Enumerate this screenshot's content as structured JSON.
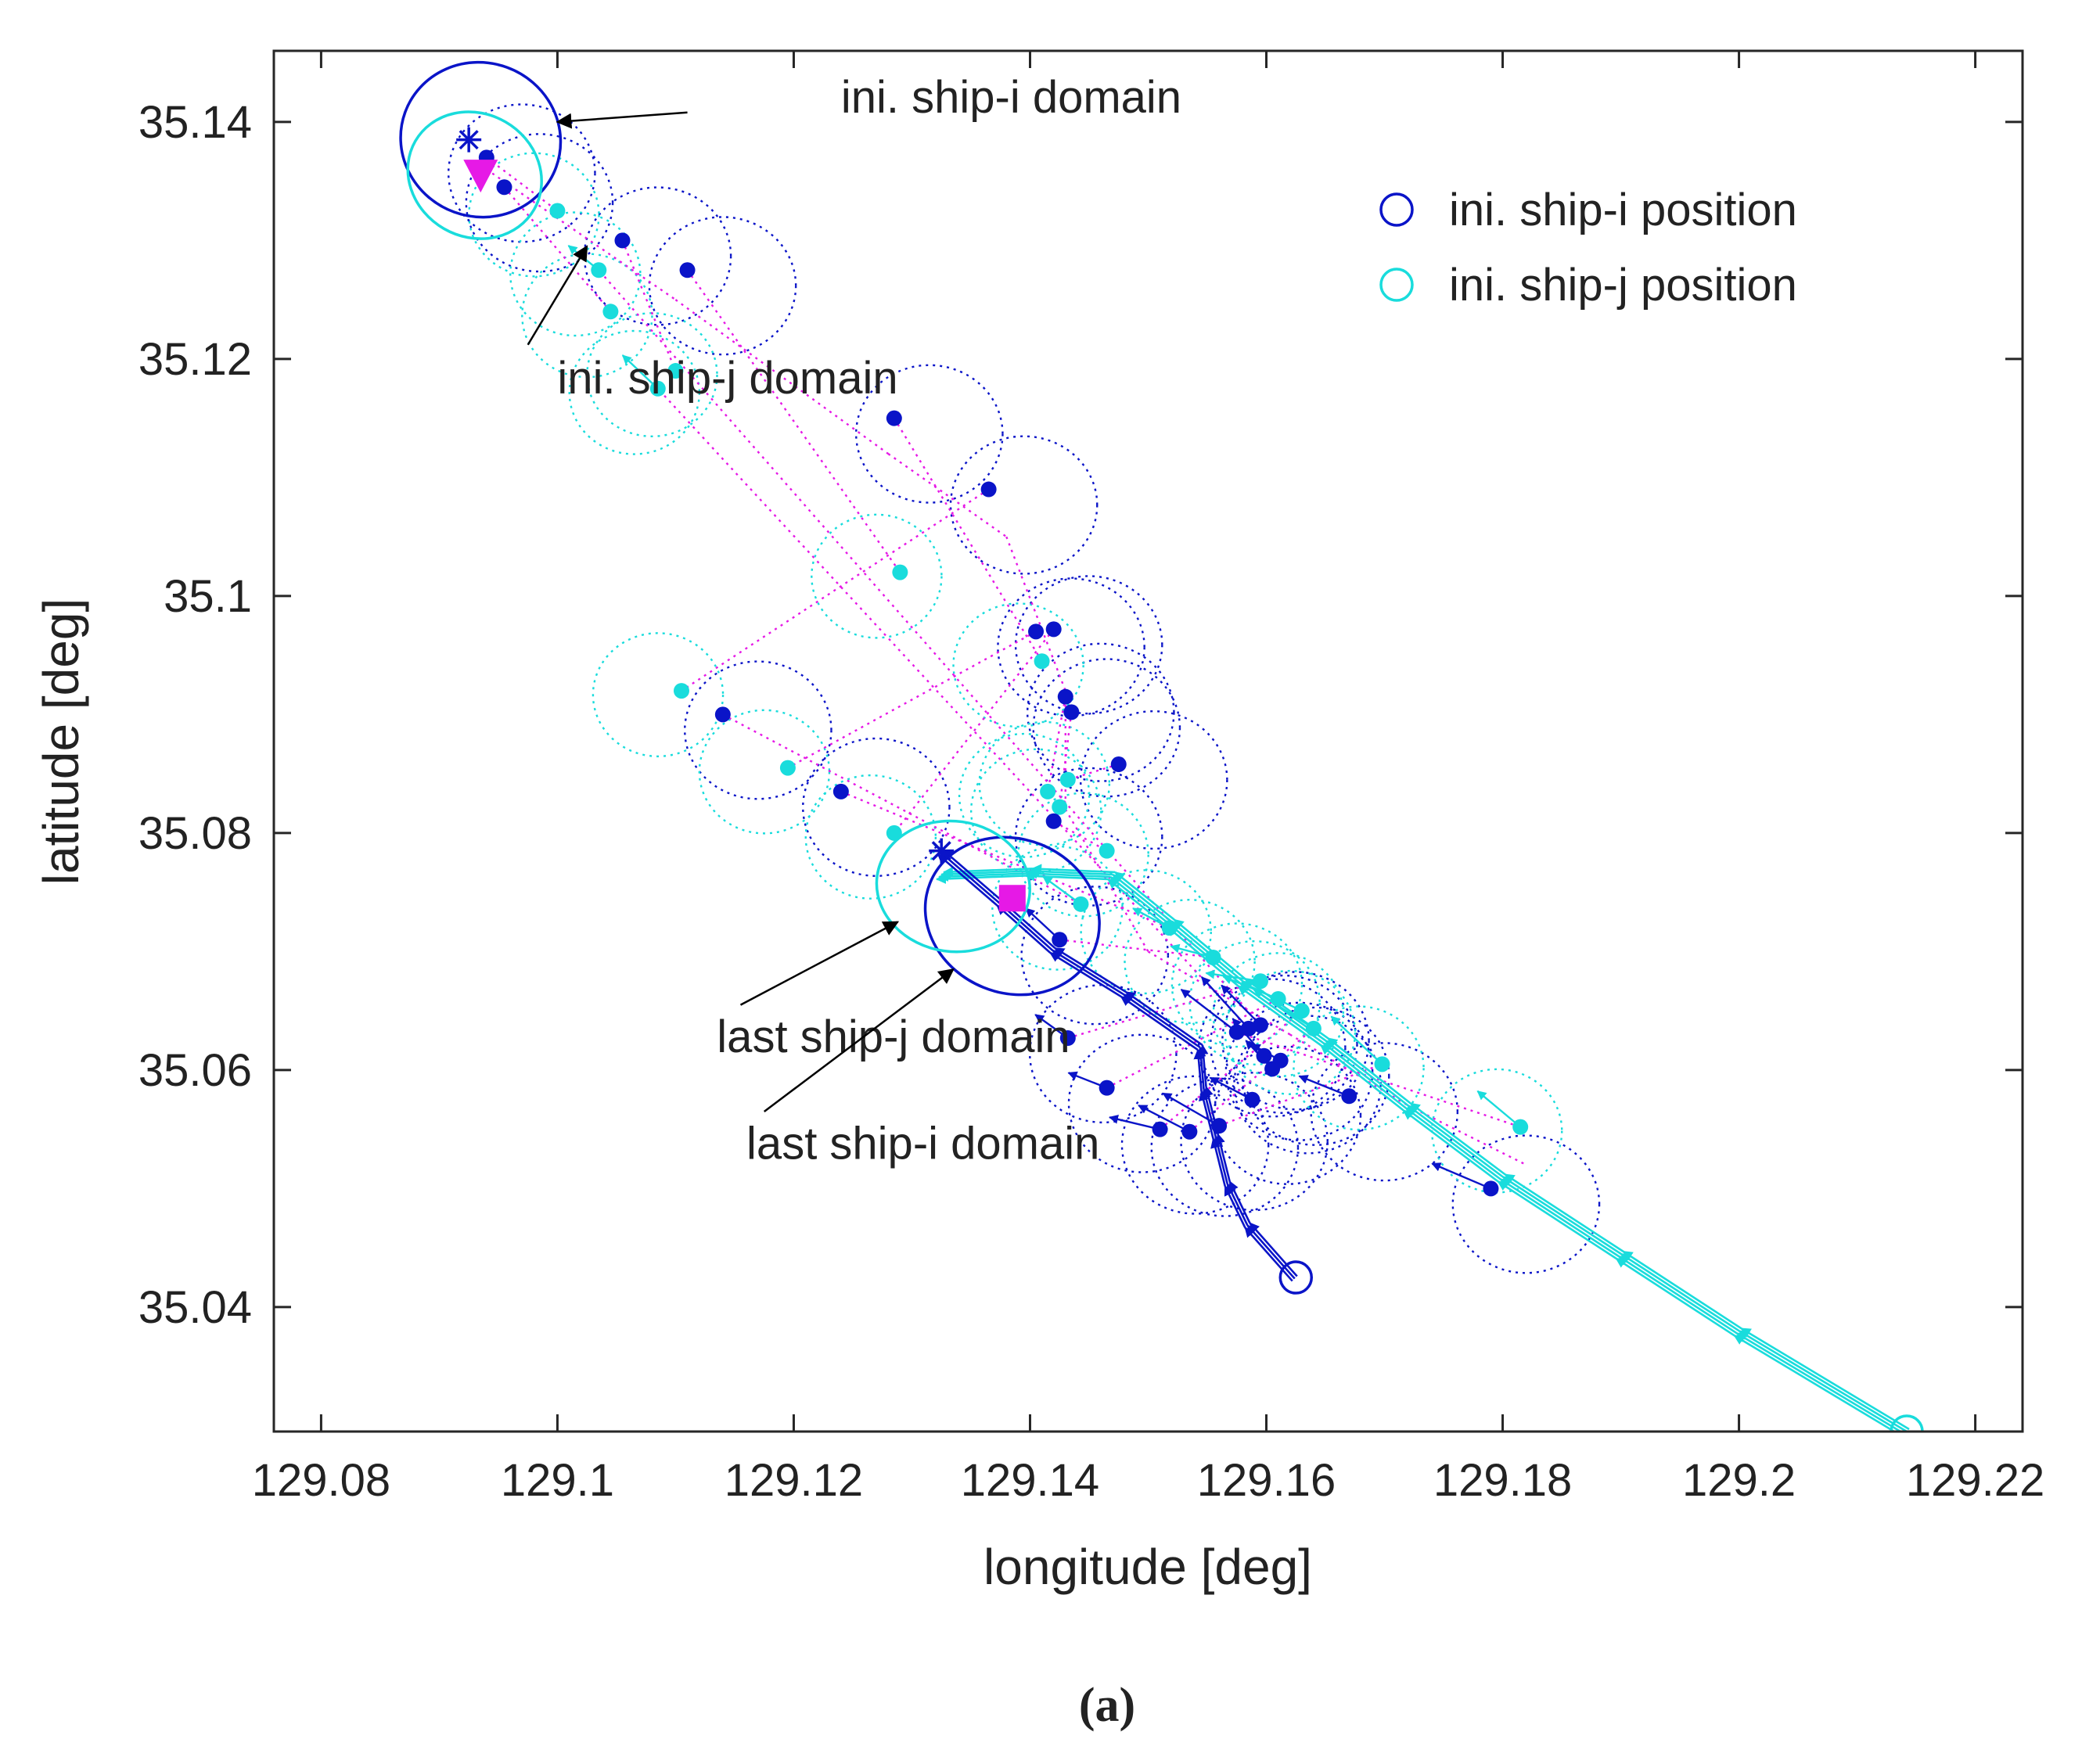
{
  "chart_data": {
    "type": "scatter",
    "caption": "(a)",
    "xlabel": "longitude [deg]",
    "ylabel": "latitude [deg]",
    "xlim": [
      129.076,
      129.224
    ],
    "ylim": [
      35.0295,
      35.146
    ],
    "xticks": [
      129.08,
      129.1,
      129.12,
      129.14,
      129.16,
      129.18,
      129.2,
      129.22
    ],
    "xtick_labels": [
      "129.08",
      "129.1",
      "129.12",
      "129.14",
      "129.16",
      "129.18",
      "129.2",
      "129.22"
    ],
    "yticks": [
      35.04,
      35.06,
      35.08,
      35.1,
      35.12,
      35.14
    ],
    "ytick_labels": [
      "35.04",
      "35.06",
      "35.08",
      "35.1",
      "35.12",
      "35.14"
    ],
    "legend": [
      {
        "label": "ini. ship-i position",
        "color": "#0a14c8"
      },
      {
        "label": "ini. ship-j position",
        "color": "#19dcdc"
      }
    ],
    "colors": {
      "ship_i": "#0a14c8",
      "ship_j": "#19dcdc",
      "pair": "#e619e6",
      "annotation": "#000000"
    },
    "annotations": [
      {
        "text": "ini. ship-i domain",
        "text_at": [
          129.124,
          35.1408
        ],
        "arrow_from": [
          129.111,
          35.1408
        ],
        "arrow_to": [
          129.1,
          35.14
        ]
      },
      {
        "text": "ini. ship-j domain",
        "text_at": [
          129.1,
          35.1171
        ],
        "arrow_from": [
          129.0975,
          35.1212
        ],
        "arrow_to": [
          129.1025,
          35.1295
        ]
      },
      {
        "text": "last ship-j domain",
        "text_at": [
          129.1135,
          35.0615
        ],
        "arrow_from": [
          129.1155,
          35.0655
        ],
        "arrow_to": [
          129.1288,
          35.0725
        ]
      },
      {
        "text": "last ship-i domain",
        "text_at": [
          129.116,
          35.0525
        ],
        "arrow_from": [
          129.1175,
          35.0565
        ],
        "arrow_to": [
          129.1335,
          35.0685
        ]
      }
    ],
    "ship_i_points": [
      [
        129.094,
        35.137
      ],
      [
        129.0955,
        35.1345
      ],
      [
        129.1055,
        35.13
      ],
      [
        129.111,
        35.1275
      ],
      [
        129.1285,
        35.115
      ],
      [
        129.1365,
        35.109
      ],
      [
        129.1405,
        35.097
      ],
      [
        129.142,
        35.0972
      ],
      [
        129.143,
        35.0915
      ],
      [
        129.1435,
        35.0902
      ],
      [
        129.1475,
        35.0858
      ],
      [
        129.142,
        35.081
      ],
      [
        129.114,
        35.09
      ],
      [
        129.124,
        35.0835
      ],
      [
        129.1425,
        35.071
      ],
      [
        129.1432,
        35.0627
      ],
      [
        129.1465,
        35.0585
      ],
      [
        129.151,
        35.055
      ],
      [
        129.1535,
        35.0548
      ],
      [
        129.156,
        35.0553
      ],
      [
        129.1575,
        35.0632
      ],
      [
        129.1585,
        35.0635
      ],
      [
        129.1595,
        35.0638
      ],
      [
        129.1598,
        35.0612
      ],
      [
        129.1605,
        35.0601
      ],
      [
        129.1612,
        35.0608
      ],
      [
        129.1588,
        35.0575
      ],
      [
        129.167,
        35.0578
      ],
      [
        129.179,
        35.05
      ]
    ],
    "ship_j_points": [
      [
        129.1,
        35.1325
      ],
      [
        129.1045,
        35.124
      ],
      [
        129.11,
        35.119
      ],
      [
        129.129,
        35.102
      ],
      [
        129.141,
        35.0945
      ],
      [
        129.1105,
        35.092
      ],
      [
        129.1195,
        35.0855
      ],
      [
        129.1285,
        35.08
      ],
      [
        129.1415,
        35.0835
      ],
      [
        129.1425,
        35.0822
      ],
      [
        129.1432,
        35.0845
      ],
      [
        129.1465,
        35.0785
      ],
      [
        129.1443,
        35.074
      ],
      [
        129.1518,
        35.072
      ],
      [
        129.1555,
        35.0695
      ],
      [
        129.1595,
        35.0675
      ],
      [
        129.161,
        35.066
      ],
      [
        129.163,
        35.065
      ],
      [
        129.164,
        35.0635
      ],
      [
        129.1698,
        35.0605
      ],
      [
        129.1815,
        35.0552
      ],
      [
        129.1085,
        35.1175
      ],
      [
        129.1035,
        35.1275
      ]
    ],
    "ship_i_path": [
      [
        129.1625,
        35.0425
      ],
      [
        129.1585,
        35.047
      ],
      [
        129.1568,
        35.0505
      ],
      [
        129.1558,
        35.0545
      ],
      [
        129.1548,
        35.0585
      ],
      [
        129.1545,
        35.062
      ],
      [
        129.148,
        35.0665
      ],
      [
        129.142,
        35.0702
      ],
      [
        129.1375,
        35.0742
      ],
      [
        129.1325,
        35.0785
      ]
    ],
    "ship_j_path": [
      [
        129.2142,
        35.0295
      ],
      [
        129.2,
        35.038
      ],
      [
        129.19,
        35.0445
      ],
      [
        129.18,
        35.051
      ],
      [
        129.172,
        35.057
      ],
      [
        129.165,
        35.0625
      ],
      [
        129.158,
        35.0675
      ],
      [
        129.152,
        35.0725
      ],
      [
        129.147,
        35.0765
      ],
      [
        129.14,
        35.0768
      ],
      [
        129.1325,
        35.0765
      ]
    ],
    "ship_i_start": [
      129.1625,
      35.0425
    ],
    "ship_j_start": [
      129.2142,
      35.0295
    ],
    "ship_i_initial_marker": [
      129.0925,
      35.1385
    ],
    "ship_i_last_marker": [
      129.1325,
      35.0785
    ],
    "pair_initial_marker": [
      129.0935,
      35.1355
    ],
    "pair_last_marker": [
      129.1385,
      35.0745
    ],
    "ini_ship_i_domain": {
      "center": [
        129.0935,
        35.1385
      ],
      "rx_deg": 0.0068,
      "ry_deg": 0.0065
    },
    "ini_ship_j_domain": {
      "center": [
        129.093,
        35.1355
      ],
      "rx_deg": 0.0058,
      "ry_deg": 0.0052
    },
    "last_ship_i_domain": {
      "center": [
        129.1385,
        35.073
      ],
      "rx_deg": 0.0075,
      "ry_deg": 0.0065
    },
    "last_ship_j_domain": {
      "center": [
        129.1335,
        35.0755
      ],
      "rx_deg": 0.0065,
      "ry_deg": 0.0055
    }
  }
}
